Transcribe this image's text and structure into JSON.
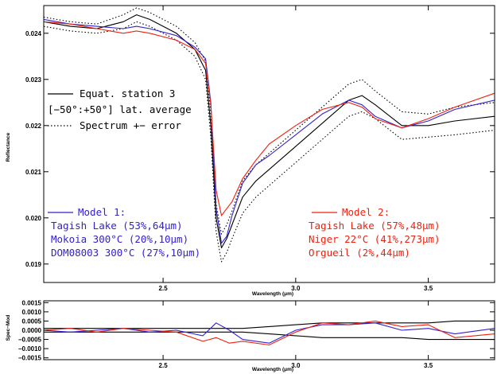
{
  "colors": {
    "black": "#000000",
    "blue": "#3322cc",
    "red": "#ee2211"
  },
  "top_legend": [
    {
      "style": "solid",
      "text": "Equat. station 3"
    },
    {
      "style": "none",
      "text": "[−50°:+50°] lat. average"
    },
    {
      "style": "dotted",
      "text": "Spectrum +− error"
    }
  ],
  "model1": {
    "title": "Model 1:",
    "lines": [
      "Tagish Lake (53%,64μm)",
      "Mokoia 300°C (20%,10μm)",
      "DOM08003 300°C (27%,10μm)"
    ]
  },
  "model2": {
    "title": "Model 2:",
    "lines": [
      "Tagish Lake (57%,48μm)",
      "Niger 22°C (41%,273μm)",
      "Orgueil (2%,44μm)"
    ]
  },
  "chart_data": [
    {
      "type": "line",
      "xlabel": "Wavelength (μm)",
      "ylabel": "Reflectance",
      "xlim": [
        2.05,
        3.75
      ],
      "ylim": [
        0.0186,
        0.0246
      ],
      "xticks": [
        2.5,
        3.0,
        3.5
      ],
      "xtick_labels": [
        "2.5",
        "3.0",
        "3.5"
      ],
      "yticks": [
        0.019,
        0.02,
        0.021,
        0.022,
        0.023,
        0.024
      ],
      "ytick_labels": [
        "0.019",
        "0.020",
        "0.021",
        "0.022",
        "0.023",
        "0.024"
      ],
      "x": [
        2.05,
        2.15,
        2.25,
        2.35,
        2.4,
        2.45,
        2.55,
        2.62,
        2.66,
        2.68,
        2.7,
        2.72,
        2.74,
        2.76,
        2.8,
        2.85,
        2.9,
        3.0,
        3.1,
        3.2,
        3.25,
        3.3,
        3.4,
        3.5,
        3.6,
        3.75
      ],
      "series": [
        {
          "name": "Equat. station 3",
          "color": "#000000",
          "style": "solid",
          "values": [
            0.02425,
            0.02415,
            0.0241,
            0.02425,
            0.0244,
            0.0243,
            0.024,
            0.02365,
            0.0232,
            0.022,
            0.02,
            0.01935,
            0.01955,
            0.01985,
            0.02045,
            0.0208,
            0.02105,
            0.02155,
            0.02205,
            0.02255,
            0.02265,
            0.02245,
            0.022,
            0.022,
            0.0221,
            0.0222
          ]
        },
        {
          "color": "#000000",
          "style": "dotted",
          "values": [
            0.02435,
            0.02425,
            0.0242,
            0.0244,
            0.02455,
            0.02445,
            0.02415,
            0.0238,
            0.0234,
            0.02225,
            0.0203,
            0.01965,
            0.01985,
            0.02015,
            0.0208,
            0.02115,
            0.0214,
            0.0219,
            0.0224,
            0.0229,
            0.023,
            0.02275,
            0.0223,
            0.02225,
            0.0224,
            0.0225
          ]
        },
        {
          "color": "#000000",
          "style": "dotted",
          "values": [
            0.02415,
            0.02405,
            0.024,
            0.0241,
            0.02425,
            0.02415,
            0.02385,
            0.0235,
            0.023,
            0.02175,
            0.0197,
            0.01905,
            0.01925,
            0.01955,
            0.0201,
            0.02045,
            0.0207,
            0.0212,
            0.0217,
            0.0222,
            0.0223,
            0.02215,
            0.0217,
            0.02175,
            0.0218,
            0.0219
          ]
        },
        {
          "name": "Model 1",
          "color": "#3322cc",
          "style": "solid",
          "values": [
            0.0243,
            0.0242,
            0.02415,
            0.0241,
            0.02415,
            0.0241,
            0.02395,
            0.0237,
            0.02345,
            0.0225,
            0.0202,
            0.01945,
            0.0196,
            0.02005,
            0.02075,
            0.02115,
            0.02135,
            0.0218,
            0.02225,
            0.02255,
            0.02245,
            0.0222,
            0.02195,
            0.0221,
            0.02235,
            0.02255
          ]
        },
        {
          "name": "Model 2",
          "color": "#ee2211",
          "style": "solid",
          "values": [
            0.02425,
            0.0242,
            0.0241,
            0.024,
            0.02405,
            0.024,
            0.02385,
            0.02365,
            0.02335,
            0.02245,
            0.0206,
            0.02005,
            0.0202,
            0.02035,
            0.02085,
            0.02125,
            0.0216,
            0.022,
            0.02235,
            0.0225,
            0.0224,
            0.02215,
            0.02195,
            0.02215,
            0.0224,
            0.0227
          ]
        }
      ]
    },
    {
      "type": "line",
      "xlabel": "Wavelength (μm)",
      "ylabel": "Spec−Mod",
      "xlim": [
        2.05,
        3.75
      ],
      "ylim": [
        -0.0016,
        0.0016
      ],
      "xticks": [
        2.5,
        3.0,
        3.5
      ],
      "xtick_labels": [
        "2.5",
        "3.0",
        "3.5"
      ],
      "yticks": [
        0.0015,
        0.001,
        0.0005,
        0.0,
        -0.0005,
        -0.001,
        -0.0015
      ],
      "ytick_labels": [
        "0.0015",
        "0.0010",
        "0.0005",
        "0.0000",
        "−0.0005",
        "−0.0010",
        "−0.0015"
      ],
      "x": [
        2.05,
        2.15,
        2.25,
        2.35,
        2.45,
        2.55,
        2.65,
        2.7,
        2.75,
        2.8,
        2.9,
        3.0,
        3.1,
        3.2,
        3.3,
        3.4,
        3.5,
        3.6,
        3.75
      ],
      "series": [
        {
          "color": "#000000",
          "style": "solid",
          "values": [
            0.0001,
            0.0001,
            0.0001,
            0.0001,
            0.0001,
            0.0001,
            0.0001,
            0.0001,
            0.0001,
            0.0001,
            0.0002,
            0.0003,
            0.0004,
            0.0004,
            0.0004,
            0.0004,
            0.0004,
            0.0005,
            0.0005
          ]
        },
        {
          "color": "#000000",
          "style": "solid",
          "values": [
            -0.0001,
            -0.0001,
            -0.0001,
            -0.0001,
            -0.0001,
            -0.0001,
            -0.0001,
            -0.0001,
            -0.0001,
            -0.0001,
            -0.0002,
            -0.0003,
            -0.0004,
            -0.0004,
            -0.0004,
            -0.0004,
            -0.0005,
            -0.0005,
            -0.0005
          ]
        },
        {
          "color": "#3322cc",
          "style": "solid",
          "values": [
            0.0,
            -0.0001,
            0.0,
            0.0001,
            -0.0001,
            0.0,
            -0.0003,
            0.0004,
            0.0,
            -0.0005,
            -0.0007,
            0.0,
            0.0003,
            0.0003,
            0.0004,
            0.0,
            0.0001,
            -0.0002,
            0.0001
          ]
        },
        {
          "color": "#ee2211",
          "style": "solid",
          "values": [
            0.0,
            0.0001,
            -0.0001,
            0.0001,
            0.0,
            -0.0001,
            -0.0006,
            -0.0004,
            -0.0007,
            -0.0006,
            -0.0008,
            -0.0001,
            0.0004,
            0.0003,
            0.0005,
            0.0002,
            0.0003,
            -0.0004,
            -0.0002
          ]
        }
      ]
    }
  ]
}
